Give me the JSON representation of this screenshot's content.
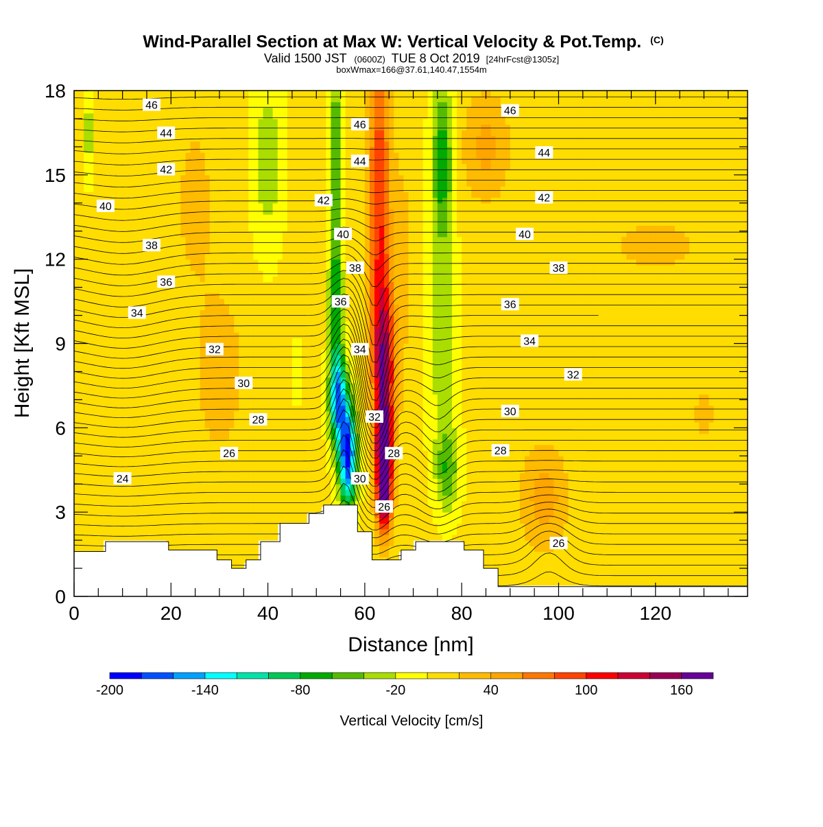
{
  "chart_data": {
    "type": "heatmap",
    "title": "Wind-Parallel Section at Max W: Vertical Velocity & Pot.Temp.",
    "title_mark": "(C)",
    "subtitle_parts": [
      "Valid 1500 JST",
      "(0600Z)",
      "TUE 8 Oct 2019",
      "[24hrFcst@1305z]"
    ],
    "subtitle2": "boxWmax=166@37.61,140.47,1554m",
    "xlabel": "Distance [nm]",
    "ylabel": "Height [Kft MSL]",
    "xlim": [
      0,
      139
    ],
    "ylim": [
      0,
      18
    ],
    "x_ticks": [
      0,
      20,
      40,
      60,
      80,
      100,
      120
    ],
    "y_ticks": [
      0,
      3,
      6,
      9,
      12,
      15,
      18
    ],
    "colorbar": {
      "label": "Vertical Velocity [cm/s]",
      "range": [
        -200,
        180
      ],
      "step": 20,
      "tick_labels": [
        -200,
        -140,
        -80,
        -20,
        40,
        100,
        160
      ],
      "colors": [
        "#0000ff",
        "#0050ff",
        "#00a0ff",
        "#00ffff",
        "#00e3aa",
        "#00c855",
        "#00aa00",
        "#55bb00",
        "#aadd00",
        "#ffff00",
        "#ffdd00",
        "#ffbb00",
        "#ffa500",
        "#ff7700",
        "#ff4400",
        "#ff0000",
        "#cc0033",
        "#990055",
        "#660099"
      ]
    },
    "terrain": [
      {
        "x": 0,
        "h": 1.6
      },
      {
        "x": 6.5,
        "h": 1.6
      },
      {
        "x": 6.5,
        "h": 1.95
      },
      {
        "x": 19.5,
        "h": 1.95
      },
      {
        "x": 19.5,
        "h": 1.65
      },
      {
        "x": 29.5,
        "h": 1.65
      },
      {
        "x": 29.5,
        "h": 1.3
      },
      {
        "x": 32.5,
        "h": 1.3
      },
      {
        "x": 32.5,
        "h": 1.0
      },
      {
        "x": 35.5,
        "h": 1.0
      },
      {
        "x": 35.5,
        "h": 1.3
      },
      {
        "x": 38.5,
        "h": 1.3
      },
      {
        "x": 38.5,
        "h": 1.95
      },
      {
        "x": 42.5,
        "h": 1.95
      },
      {
        "x": 42.5,
        "h": 2.6
      },
      {
        "x": 48.5,
        "h": 2.6
      },
      {
        "x": 48.5,
        "h": 2.95
      },
      {
        "x": 51.5,
        "h": 2.95
      },
      {
        "x": 51.5,
        "h": 3.25
      },
      {
        "x": 58.5,
        "h": 3.25
      },
      {
        "x": 58.5,
        "h": 2.3
      },
      {
        "x": 61.5,
        "h": 2.3
      },
      {
        "x": 61.5,
        "h": 1.3
      },
      {
        "x": 67.5,
        "h": 1.3
      },
      {
        "x": 67.5,
        "h": 1.65
      },
      {
        "x": 70.5,
        "h": 1.65
      },
      {
        "x": 70.5,
        "h": 1.95
      },
      {
        "x": 80.5,
        "h": 1.95
      },
      {
        "x": 80.5,
        "h": 1.65
      },
      {
        "x": 84.5,
        "h": 1.65
      },
      {
        "x": 84.5,
        "h": 1.0
      },
      {
        "x": 87.5,
        "h": 1.0
      },
      {
        "x": 87.5,
        "h": 0.35
      },
      {
        "x": 139,
        "h": 0.35
      }
    ],
    "w_field": {
      "background": 5,
      "blobs": [
        {
          "x": 64,
          "y": 5.0,
          "sx": 1.6,
          "sy": 1.5,
          "value": 170
        },
        {
          "x": 64,
          "y": 3.2,
          "sx": 1.5,
          "sy": 1.2,
          "value": 120
        },
        {
          "x": 64,
          "y": 8.0,
          "sx": 2.2,
          "sy": 3.0,
          "value": 130
        },
        {
          "x": 63,
          "y": 14.0,
          "sx": 2.3,
          "sy": 6.0,
          "value": 95
        },
        {
          "x": 56.5,
          "y": 5.0,
          "sx": 1.8,
          "sy": 1.8,
          "value": -195
        },
        {
          "x": 54.5,
          "y": 7.0,
          "sx": 1.8,
          "sy": 1.6,
          "value": -150
        },
        {
          "x": 54,
          "y": 10.5,
          "sx": 1.4,
          "sy": 3.0,
          "value": -80
        },
        {
          "x": 54,
          "y": 16.0,
          "sx": 1.4,
          "sy": 3.0,
          "value": -70
        },
        {
          "x": 40,
          "y": 15.5,
          "sx": 3.0,
          "sy": 3.0,
          "value": -40
        },
        {
          "x": 76,
          "y": 15.5,
          "sx": 2.2,
          "sy": 3.0,
          "value": -80
        },
        {
          "x": 76,
          "y": 9.0,
          "sx": 3.0,
          "sy": 3.5,
          "value": -40
        },
        {
          "x": 77,
          "y": 4.5,
          "sx": 2.5,
          "sy": 1.5,
          "value": -60
        },
        {
          "x": 3,
          "y": 16.5,
          "sx": 1.0,
          "sy": 1.5,
          "value": -40
        },
        {
          "x": 46,
          "y": 8.0,
          "sx": 0.7,
          "sy": 1.0,
          "value": -40
        },
        {
          "x": 97,
          "y": 3.5,
          "sx": 5.0,
          "sy": 1.8,
          "value": 45
        },
        {
          "x": 85,
          "y": 16.0,
          "sx": 5.0,
          "sy": 2.0,
          "value": 40
        },
        {
          "x": 30,
          "y": 8.0,
          "sx": 5.0,
          "sy": 3.0,
          "value": 30
        },
        {
          "x": 25,
          "y": 14.0,
          "sx": 4.0,
          "sy": 3.0,
          "value": 25
        },
        {
          "x": 120,
          "y": 12.5,
          "sx": 10.0,
          "sy": 1.0,
          "value": 25
        },
        {
          "x": 130,
          "y": 6.5,
          "sx": 2.0,
          "sy": 1.0,
          "value": 30
        },
        {
          "x": 68,
          "y": 12.0,
          "sx": 2.0,
          "sy": 5.0,
          "value": 20
        }
      ]
    },
    "theta_contour_labels": [
      {
        "x": 16,
        "y": 17.5,
        "v": "46"
      },
      {
        "x": 19,
        "y": 16.5,
        "v": "44"
      },
      {
        "x": 19,
        "y": 15.2,
        "v": "42"
      },
      {
        "x": 6.5,
        "y": 13.9,
        "v": "40"
      },
      {
        "x": 16,
        "y": 12.5,
        "v": "38"
      },
      {
        "x": 19,
        "y": 11.2,
        "v": "36"
      },
      {
        "x": 13,
        "y": 10.1,
        "v": "34"
      },
      {
        "x": 29,
        "y": 8.8,
        "v": "32"
      },
      {
        "x": 35,
        "y": 7.6,
        "v": "30"
      },
      {
        "x": 38,
        "y": 6.3,
        "v": "28"
      },
      {
        "x": 32,
        "y": 5.1,
        "v": "26"
      },
      {
        "x": 10,
        "y": 4.2,
        "v": "24"
      },
      {
        "x": 59,
        "y": 16.8,
        "v": "46"
      },
      {
        "x": 59,
        "y": 15.5,
        "v": "44"
      },
      {
        "x": 51.5,
        "y": 14.1,
        "v": "42"
      },
      {
        "x": 55.5,
        "y": 12.9,
        "v": "40"
      },
      {
        "x": 58,
        "y": 11.7,
        "v": "38"
      },
      {
        "x": 55,
        "y": 10.5,
        "v": "36"
      },
      {
        "x": 59,
        "y": 8.8,
        "v": "34"
      },
      {
        "x": 62,
        "y": 6.4,
        "v": "32"
      },
      {
        "x": 66,
        "y": 5.1,
        "v": "28"
      },
      {
        "x": 59,
        "y": 4.2,
        "v": "30"
      },
      {
        "x": 64,
        "y": 3.2,
        "v": "26"
      },
      {
        "x": 90,
        "y": 17.3,
        "v": "46"
      },
      {
        "x": 97,
        "y": 15.8,
        "v": "44"
      },
      {
        "x": 97,
        "y": 14.2,
        "v": "42"
      },
      {
        "x": 93,
        "y": 12.9,
        "v": "40"
      },
      {
        "x": 100,
        "y": 11.7,
        "v": "38"
      },
      {
        "x": 90,
        "y": 10.4,
        "v": "36"
      },
      {
        "x": 94,
        "y": 9.1,
        "v": "34"
      },
      {
        "x": 103,
        "y": 7.9,
        "v": "32"
      },
      {
        "x": 90,
        "y": 6.6,
        "v": "30"
      },
      {
        "x": 88,
        "y": 5.2,
        "v": "28"
      },
      {
        "x": 100,
        "y": 1.9,
        "v": "26"
      }
    ],
    "theta_contour_levels": {
      "min": 20,
      "max": 48,
      "step": 0.5
    }
  }
}
